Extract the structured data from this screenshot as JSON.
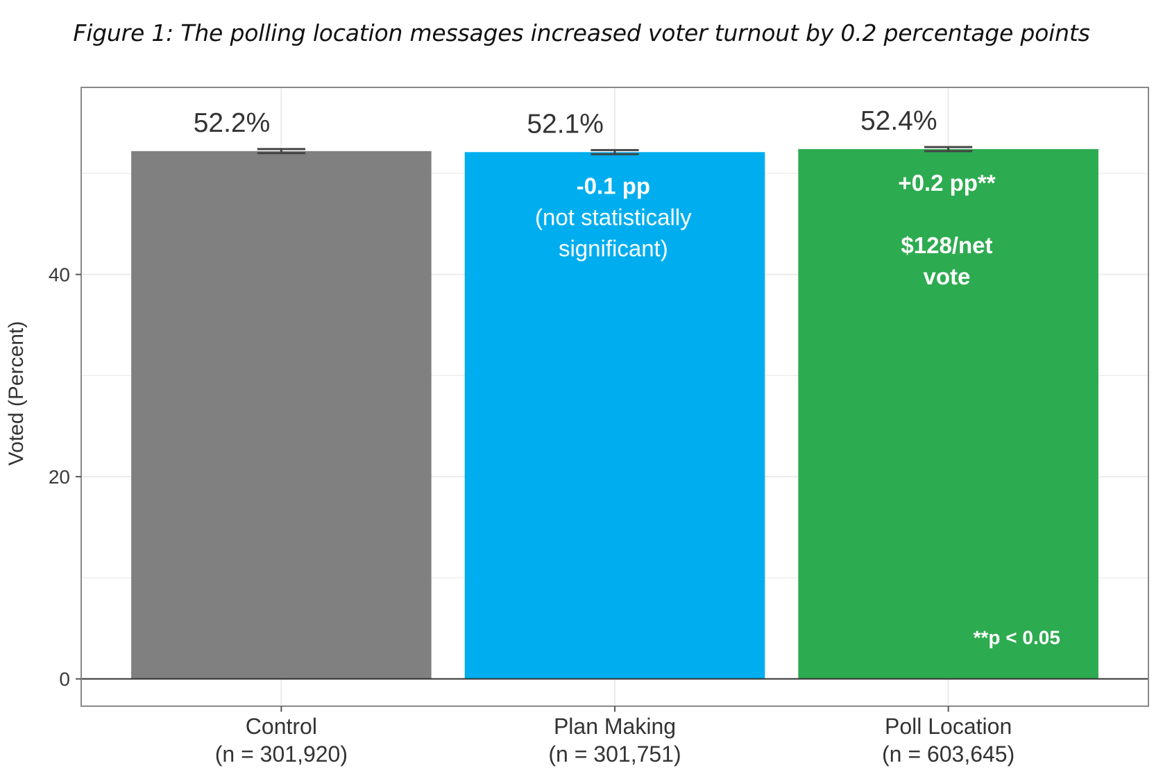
{
  "figure_title": "Figure 1: The polling location messages increased voter turnout by 0.2 percentage points",
  "chart_data": {
    "type": "bar",
    "title": "Figure 1: The polling location messages increased voter turnout by 0.2 percentage points",
    "xlabel": "",
    "ylabel": "Voted (Percent)",
    "ylim": [
      -2.7,
      58.5
    ],
    "yticks": [
      0,
      20,
      40
    ],
    "grid": true,
    "legend": "none",
    "categories": [
      {
        "name": "Control",
        "n_label": "(n = 301,920)"
      },
      {
        "name": "Plan Making",
        "n_label": "(n = 301,751)"
      },
      {
        "name": "Poll Location",
        "n_label": "(n = 603,645)"
      }
    ],
    "values": [
      52.2,
      52.1,
      52.4
    ],
    "value_labels": [
      "52.2%",
      "52.1%",
      "52.4%"
    ],
    "error_bars": [
      [
        52.0,
        52.4
      ],
      [
        51.9,
        52.3
      ],
      [
        52.2,
        52.6
      ]
    ],
    "colors": [
      "#808080",
      "#00aeef",
      "#2dab50"
    ],
    "annotations": [
      [],
      [
        {
          "text": "-0.1 pp",
          "bold": true
        },
        {
          "text": "(not statistically",
          "bold": false
        },
        {
          "text": "significant)",
          "bold": false
        }
      ],
      [
        {
          "text": "+0.2 pp**",
          "bold": true
        },
        {
          "text": "$128/net",
          "bold": true
        },
        {
          "text": "vote",
          "bold": true
        }
      ]
    ],
    "footnote": "**p < 0.05"
  }
}
